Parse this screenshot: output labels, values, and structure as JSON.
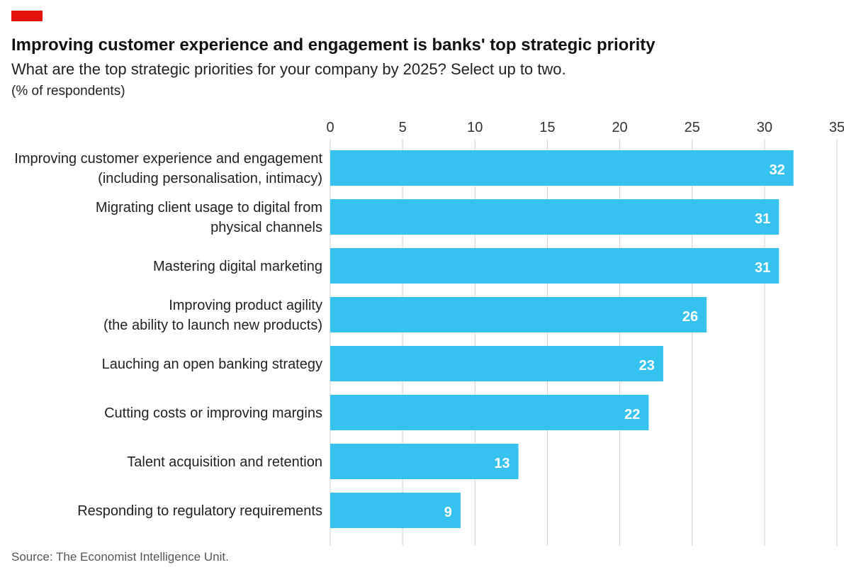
{
  "header": {
    "title": "Improving customer experience and engagement is banks' top strategic priority",
    "subtitle": "What are the top strategic priorities for your company by 2025? Select up to two.",
    "unit": "(% of respondents)"
  },
  "footer": {
    "source": "Source: The Economist Intelligence Unit."
  },
  "colors": {
    "accent": "#e3120b",
    "bar": "#36c2ef",
    "grid": "#d0d0d0"
  },
  "chart_data": {
    "type": "bar",
    "orientation": "horizontal",
    "categories": [
      [
        "Improving customer experience and engagement",
        "(including personalisation, intimacy)"
      ],
      [
        "Migrating client usage to digital from",
        "physical channels"
      ],
      [
        "Mastering digital marketing"
      ],
      [
        "Improving product agility",
        "(the ability to launch new products)"
      ],
      [
        "Lauching an open banking strategy"
      ],
      [
        "Cutting costs or improving margins"
      ],
      [
        "Talent acquisition and retention"
      ],
      [
        "Responding to regulatory requirements"
      ]
    ],
    "values": [
      32,
      31,
      31,
      26,
      23,
      22,
      13,
      9
    ],
    "xlim": [
      0,
      35
    ],
    "xticks": [
      0,
      5,
      10,
      15,
      20,
      25,
      30,
      35
    ],
    "grid": true,
    "axis_position": "top"
  }
}
